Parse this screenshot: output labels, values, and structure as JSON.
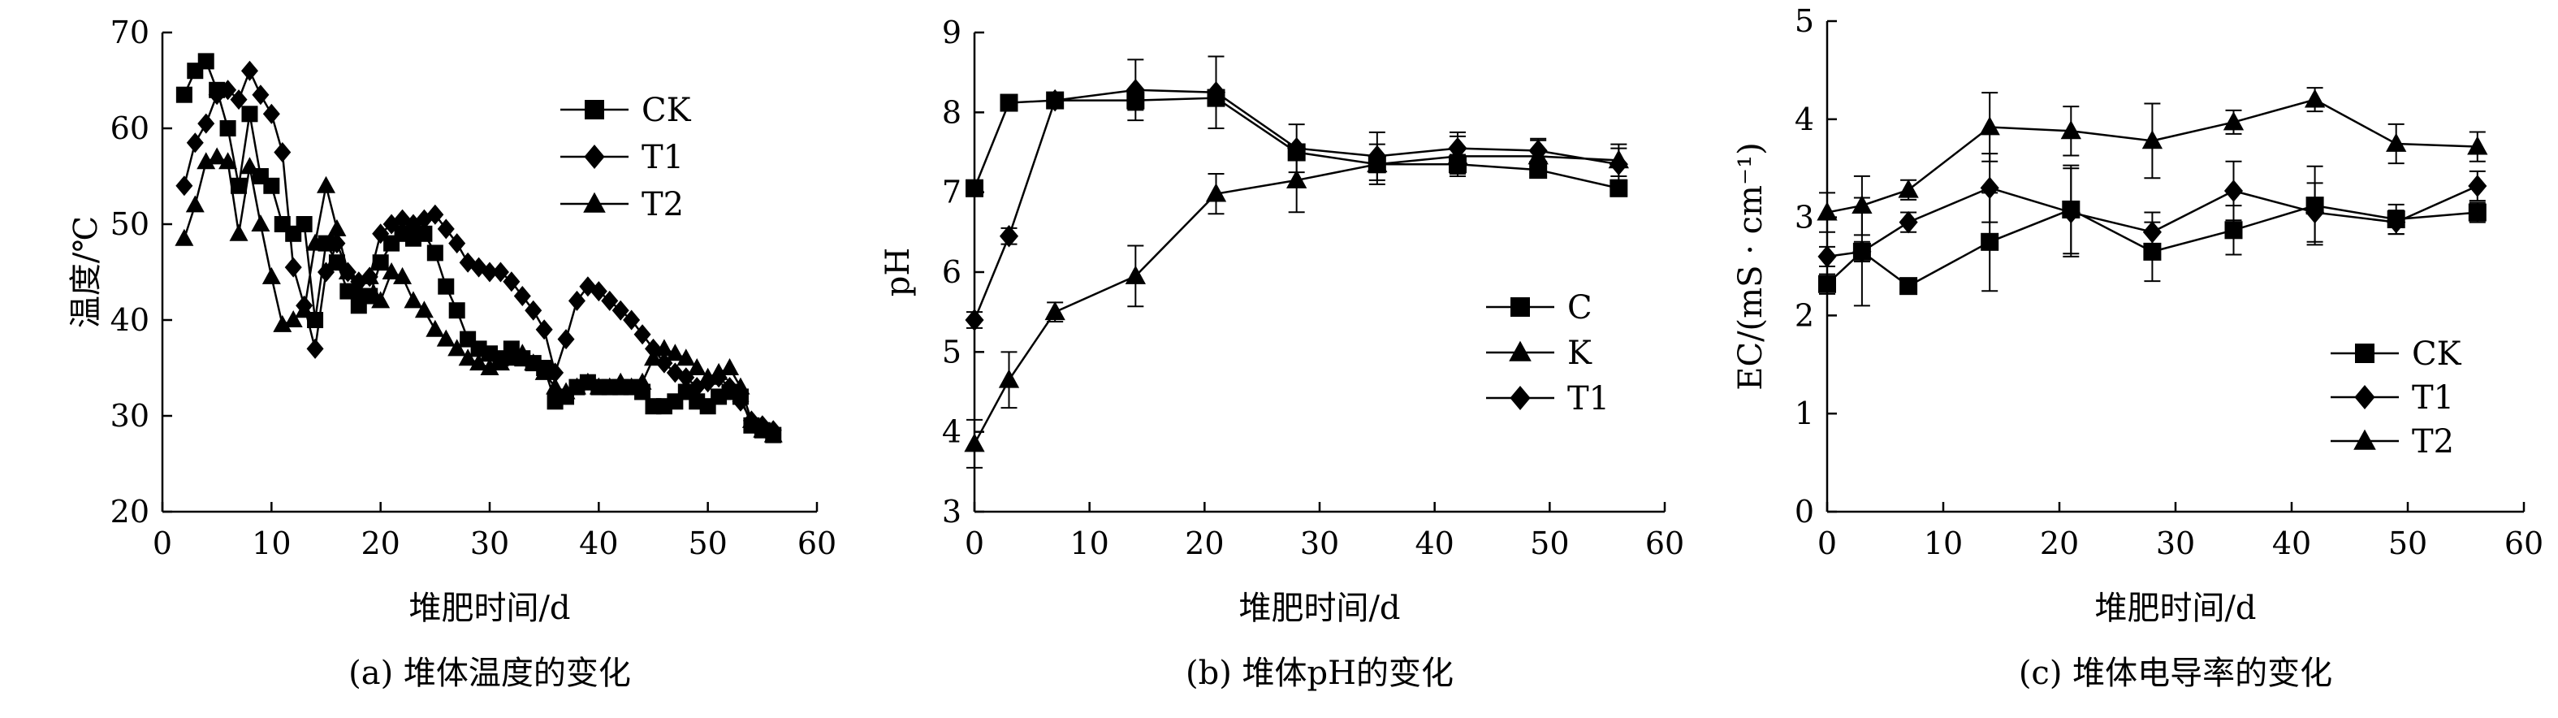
{
  "chart_data": [
    {
      "type": "line",
      "caption": "(a) 堆体温度的变化",
      "xlabel": "堆肥时间/d",
      "ylabel": "温度/℃",
      "xlim": [
        0,
        60
      ],
      "ylim": [
        20,
        70
      ],
      "xticks": [
        0,
        10,
        20,
        30,
        40,
        50,
        60
      ],
      "yticks": [
        20,
        30,
        40,
        50,
        60,
        70
      ],
      "legend_position": "top-right",
      "series": [
        {
          "name": "CK",
          "marker": "square",
          "points": [
            [
              2,
              63.5
            ],
            [
              3,
              66.0
            ],
            [
              4,
              67.0
            ],
            [
              5,
              64.0
            ],
            [
              6,
              60.0
            ],
            [
              7,
              54.0
            ],
            [
              8,
              61.5
            ],
            [
              9,
              55.0
            ],
            [
              10,
              54.0
            ],
            [
              11,
              50.0
            ],
            [
              12,
              49.0
            ],
            [
              13,
              50.0
            ],
            [
              14,
              40.0
            ],
            [
              15,
              48.0
            ],
            [
              16,
              46.0
            ],
            [
              17,
              43.0
            ],
            [
              18,
              41.5
            ],
            [
              19,
              42.5
            ],
            [
              20,
              46.0
            ],
            [
              21,
              48.0
            ],
            [
              22,
              49.0
            ],
            [
              23,
              48.5
            ],
            [
              24,
              49.0
            ],
            [
              25,
              47.0
            ],
            [
              26,
              43.5
            ],
            [
              27,
              41.0
            ],
            [
              28,
              38.0
            ],
            [
              29,
              37.0
            ],
            [
              30,
              36.5
            ],
            [
              31,
              36.0
            ],
            [
              32,
              37.0
            ],
            [
              33,
              36.0
            ],
            [
              34,
              35.5
            ],
            [
              35,
              35.0
            ],
            [
              36,
              31.5
            ],
            [
              37,
              32.0
            ],
            [
              38,
              33.0
            ],
            [
              39,
              33.5
            ],
            [
              40,
              33.0
            ],
            [
              41,
              33.0
            ],
            [
              42,
              33.0
            ],
            [
              43,
              33.0
            ],
            [
              44,
              32.5
            ],
            [
              45,
              31.0
            ],
            [
              46,
              31.0
            ],
            [
              47,
              31.5
            ],
            [
              48,
              32.5
            ],
            [
              49,
              31.5
            ],
            [
              50,
              31.0
            ],
            [
              51,
              32.0
            ],
            [
              52,
              32.5
            ],
            [
              53,
              32.0
            ],
            [
              54,
              29.0
            ],
            [
              55,
              28.5
            ],
            [
              56,
              28.0
            ]
          ]
        },
        {
          "name": "T1",
          "marker": "diamond",
          "points": [
            [
              2,
              54.0
            ],
            [
              3,
              58.5
            ],
            [
              4,
              60.5
            ],
            [
              5,
              63.5
            ],
            [
              6,
              64.0
            ],
            [
              7,
              63.0
            ],
            [
              8,
              66.0
            ],
            [
              9,
              63.5
            ],
            [
              10,
              61.5
            ],
            [
              11,
              57.5
            ],
            [
              12,
              45.5
            ],
            [
              13,
              41.5
            ],
            [
              14,
              37.0
            ],
            [
              15,
              45.0
            ],
            [
              16,
              48.0
            ],
            [
              17,
              45.0
            ],
            [
              18,
              44.0
            ],
            [
              19,
              44.5
            ],
            [
              20,
              49.0
            ],
            [
              21,
              50.0
            ],
            [
              22,
              50.5
            ],
            [
              23,
              50.0
            ],
            [
              24,
              50.5
            ],
            [
              25,
              51.0
            ],
            [
              26,
              49.5
            ],
            [
              27,
              48.0
            ],
            [
              28,
              46.0
            ],
            [
              29,
              45.5
            ],
            [
              30,
              45.0
            ],
            [
              31,
              45.0
            ],
            [
              32,
              44.0
            ],
            [
              33,
              42.5
            ],
            [
              34,
              41.0
            ],
            [
              35,
              39.0
            ],
            [
              36,
              34.5
            ],
            [
              37,
              38.0
            ],
            [
              38,
              42.0
            ],
            [
              39,
              43.5
            ],
            [
              40,
              43.0
            ],
            [
              41,
              42.0
            ],
            [
              42,
              41.0
            ],
            [
              43,
              40.0
            ],
            [
              44,
              38.5
            ],
            [
              45,
              37.0
            ],
            [
              46,
              35.5
            ],
            [
              47,
              34.5
            ],
            [
              48,
              34.0
            ],
            [
              49,
              33.0
            ],
            [
              50,
              33.5
            ],
            [
              51,
              34.0
            ],
            [
              52,
              33.0
            ],
            [
              53,
              31.5
            ],
            [
              54,
              29.5
            ],
            [
              55,
              29.0
            ],
            [
              56,
              28.5
            ]
          ]
        },
        {
          "name": "T2",
          "marker": "triangle",
          "points": [
            [
              2,
              48.5
            ],
            [
              3,
              52.0
            ],
            [
              4,
              56.5
            ],
            [
              5,
              57.0
            ],
            [
              6,
              56.5
            ],
            [
              7,
              49.0
            ],
            [
              8,
              56.0
            ],
            [
              9,
              50.0
            ],
            [
              10,
              44.5
            ],
            [
              11,
              39.5
            ],
            [
              12,
              40.0
            ],
            [
              13,
              41.0
            ],
            [
              14,
              48.0
            ],
            [
              15,
              54.0
            ],
            [
              16,
              49.5
            ],
            [
              17,
              45.0
            ],
            [
              18,
              43.0
            ],
            [
              19,
              44.5
            ],
            [
              20,
              42.0
            ],
            [
              21,
              45.0
            ],
            [
              22,
              44.5
            ],
            [
              23,
              42.0
            ],
            [
              24,
              41.0
            ],
            [
              25,
              39.0
            ],
            [
              26,
              38.0
            ],
            [
              27,
              37.0
            ],
            [
              28,
              36.0
            ],
            [
              29,
              35.5
            ],
            [
              30,
              35.0
            ],
            [
              31,
              35.5
            ],
            [
              32,
              36.0
            ],
            [
              33,
              36.5
            ],
            [
              34,
              35.5
            ],
            [
              35,
              34.5
            ],
            [
              36,
              33.0
            ],
            [
              37,
              32.5
            ],
            [
              38,
              33.0
            ],
            [
              39,
              33.5
            ],
            [
              40,
              33.0
            ],
            [
              41,
              33.0
            ],
            [
              42,
              33.5
            ],
            [
              43,
              33.0
            ],
            [
              44,
              33.5
            ],
            [
              45,
              36.0
            ],
            [
              46,
              37.0
            ],
            [
              47,
              36.5
            ],
            [
              48,
              36.0
            ],
            [
              49,
              35.0
            ],
            [
              50,
              34.0
            ],
            [
              51,
              34.5
            ],
            [
              52,
              35.0
            ],
            [
              53,
              33.0
            ],
            [
              54,
              29.5
            ],
            [
              55,
              28.5
            ],
            [
              56,
              28.0
            ]
          ]
        }
      ]
    },
    {
      "type": "line",
      "caption": "(b) 堆体pH的变化",
      "xlabel": "堆肥时间/d",
      "ylabel": "pH",
      "xlim": [
        0,
        60
      ],
      "ylim": [
        3,
        9
      ],
      "xticks": [
        0,
        10,
        20,
        30,
        40,
        50,
        60
      ],
      "yticks": [
        3,
        4,
        5,
        6,
        7,
        8,
        9
      ],
      "legend_position": "center-right",
      "series": [
        {
          "name": "C",
          "marker": "square",
          "points": [
            [
              0,
              7.05,
              0.1
            ],
            [
              3,
              8.12,
              0.1
            ],
            [
              7,
              8.15,
              0.05
            ],
            [
              14,
              8.15,
              0.12
            ],
            [
              21,
              8.18,
              0.1
            ],
            [
              28,
              7.5,
              0.1
            ],
            [
              35,
              7.35,
              0.1
            ],
            [
              42,
              7.35,
              0.12
            ],
            [
              49,
              7.28,
              0.1
            ],
            [
              56,
              7.05,
              0.1
            ]
          ]
        },
        {
          "name": "K",
          "marker": "triangle",
          "points": [
            [
              0,
              3.85,
              0.3
            ],
            [
              3,
              4.65,
              0.35
            ],
            [
              7,
              5.5,
              0.12
            ],
            [
              14,
              5.95,
              0.38
            ],
            [
              21,
              6.98,
              0.25
            ],
            [
              28,
              7.15,
              0.4
            ],
            [
              35,
              7.35,
              0.25
            ],
            [
              42,
              7.45,
              0.25
            ],
            [
              49,
              7.45,
              0.2
            ],
            [
              56,
              7.4,
              0.2
            ]
          ]
        },
        {
          "name": "T1",
          "marker": "diamond",
          "points": [
            [
              0,
              5.4,
              0.1
            ],
            [
              3,
              6.45,
              0.1
            ],
            [
              7,
              8.15,
              0.05
            ],
            [
              14,
              8.28,
              0.38
            ],
            [
              21,
              8.25,
              0.45
            ],
            [
              28,
              7.55,
              0.3
            ],
            [
              35,
              7.45,
              0.3
            ],
            [
              42,
              7.55,
              0.2
            ],
            [
              49,
              7.52,
              0.15
            ],
            [
              56,
              7.35,
              0.2
            ]
          ]
        }
      ]
    },
    {
      "type": "line",
      "caption": "(c) 堆体电导率的变化",
      "xlabel": "堆肥时间/d",
      "ylabel": "EC/(mS · cm⁻¹)",
      "xlim": [
        0,
        60
      ],
      "ylim": [
        0,
        5
      ],
      "xticks": [
        0,
        10,
        20,
        30,
        40,
        50,
        60
      ],
      "yticks": [
        0,
        1,
        2,
        3,
        4,
        5
      ],
      "legend_position": "bottom-right",
      "series": [
        {
          "name": "CK",
          "marker": "square",
          "points": [
            [
              0,
              2.32,
              0.1
            ],
            [
              3,
              2.65,
              0.1
            ],
            [
              7,
              2.3,
              0.05
            ],
            [
              14,
              2.75,
              0.5
            ],
            [
              21,
              3.08,
              0.45
            ],
            [
              28,
              2.65,
              0.3
            ],
            [
              35,
              2.87,
              0.25
            ],
            [
              42,
              3.12,
              0.4
            ],
            [
              49,
              2.98,
              0.15
            ],
            [
              56,
              3.05,
              0.1
            ]
          ]
        },
        {
          "name": "T1",
          "marker": "diamond",
          "points": [
            [
              0,
              2.6,
              0.1
            ],
            [
              3,
              2.65,
              0.55
            ],
            [
              7,
              2.95,
              0.1
            ],
            [
              14,
              3.3,
              0.35
            ],
            [
              21,
              3.05,
              0.45
            ],
            [
              28,
              2.85,
              0.2
            ],
            [
              35,
              3.27,
              0.3
            ],
            [
              42,
              3.05,
              0.3
            ],
            [
              49,
              2.95,
              0.12
            ],
            [
              56,
              3.32,
              0.15
            ]
          ]
        },
        {
          "name": "T2",
          "marker": "triangle",
          "points": [
            [
              0,
              3.05,
              0.2
            ],
            [
              3,
              3.12,
              0.3
            ],
            [
              7,
              3.28,
              0.1
            ],
            [
              14,
              3.92,
              0.35
            ],
            [
              21,
              3.88,
              0.25
            ],
            [
              28,
              3.78,
              0.38
            ],
            [
              35,
              3.97,
              0.12
            ],
            [
              42,
              4.2,
              0.12
            ],
            [
              49,
              3.75,
              0.2
            ],
            [
              56,
              3.72,
              0.15
            ]
          ]
        }
      ]
    }
  ]
}
